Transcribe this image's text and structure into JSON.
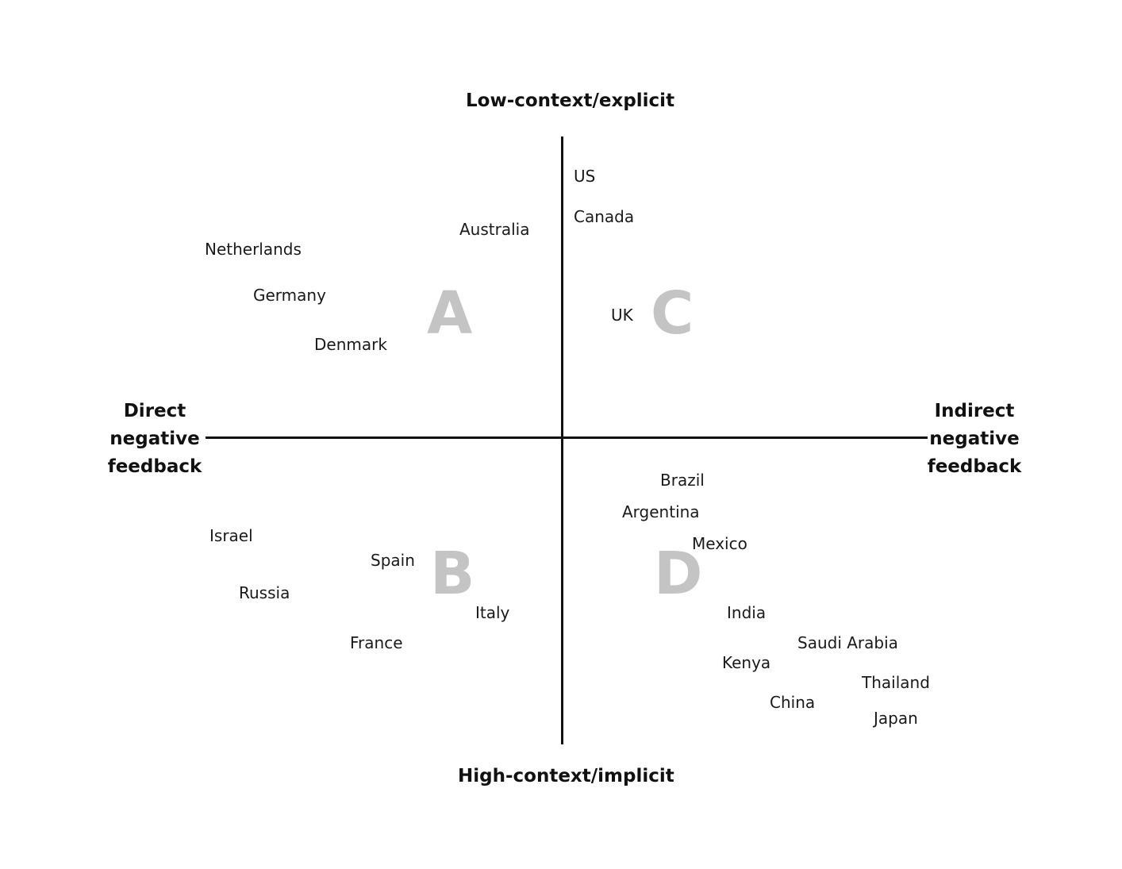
{
  "axes": {
    "top": "Low-context/explicit",
    "bottom": "High-context/implicit",
    "left": [
      "Direct",
      "negative",
      "feedback"
    ],
    "right": [
      "Indirect",
      "negative",
      "feedback"
    ]
  },
  "quadrants": {
    "a": "A",
    "b": "B",
    "c": "C",
    "d": "D"
  },
  "countries": [
    "US",
    "Canada",
    "Australia",
    "Netherlands",
    "Germany",
    "UK",
    "Denmark",
    "Brazil",
    "Argentina",
    "Mexico",
    "Israel",
    "Spain",
    "Russia",
    "Italy",
    "India",
    "France",
    "Saudi Arabia",
    "Kenya",
    "Thailand",
    "China",
    "Japan"
  ]
}
